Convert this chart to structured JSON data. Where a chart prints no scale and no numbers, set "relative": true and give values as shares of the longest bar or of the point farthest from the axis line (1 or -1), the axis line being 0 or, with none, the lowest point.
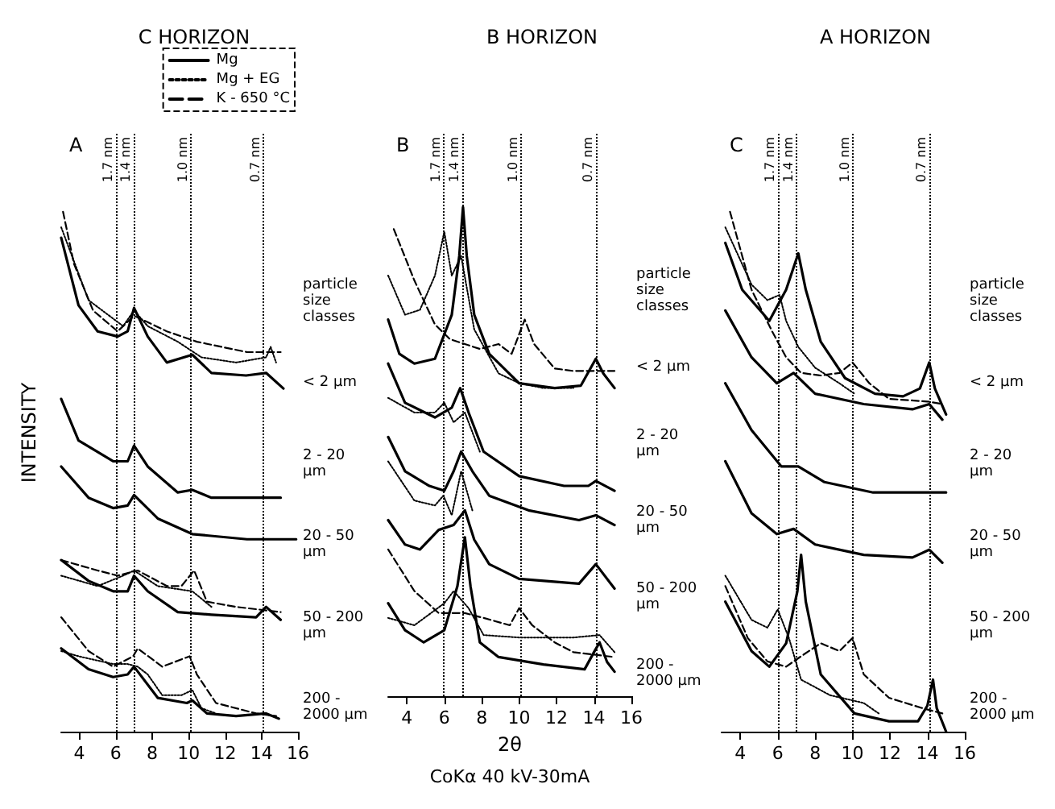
{
  "chart_data": [
    {
      "type": "line",
      "title": "C HORIZON",
      "ylabel": "INTENSITY",
      "relative": true,
      "xlim": [
        3,
        16
      ],
      "xticks": [
        4,
        6,
        8,
        10,
        12,
        14,
        16
      ],
      "legend": "top right",
      "grid": false,
      "ref_lines": [
        {
          "axis": "x",
          "value": 6,
          "label": "1.7 nm",
          "line_style": "dotted"
        },
        {
          "axis": "x",
          "value": 7,
          "label": "1.4 nm",
          "line_style": "dotted"
        },
        {
          "axis": "x",
          "value": 10.1,
          "label": "1.0 nm",
          "line_style": "dotted"
        },
        {
          "axis": "x",
          "value": 14.1,
          "label": "0.7 nm",
          "line_style": "dotted"
        }
      ],
      "annotations": [
        "A",
        "particle size classes",
        "< 2 µm",
        "2 - 20 µm",
        "20 - 50 µm",
        "50 - 200 µm",
        "200 - 2000 µm"
      ],
      "series": [
        {
          "name": "Mg",
          "color": "#000000",
          "line_style": "solid",
          "x": [
            3.0,
            3.95,
            5.0,
            6.1,
            6.65,
            7.0,
            7.75,
            8.8,
            10.2,
            11.25,
            13.15,
            14.25,
            15.2
          ],
          "values": [
            0.95,
            0.82,
            0.77,
            0.76,
            0.77,
            0.815,
            0.76,
            0.71,
            0.725,
            0.69,
            0.685,
            0.69,
            0.66
          ]
        },
        {
          "name": "Mg + EG",
          "color": "#000000",
          "line_style": "dotted",
          "x": [
            3.0,
            4.5,
            6.4,
            7.0,
            7.75,
            9.4,
            10.7,
            12.6,
            14.25,
            14.5,
            14.8
          ],
          "values": [
            0.97,
            0.83,
            0.78,
            0.81,
            0.78,
            0.75,
            0.72,
            0.71,
            0.72,
            0.74,
            0.71
          ]
        },
        {
          "name": "K - 650 °C",
          "color": "#000000",
          "line_style": "dashed",
          "x": [
            3.1,
            3.7,
            4.75,
            6.1,
            7.0,
            8.8,
            10.45,
            13.2,
            15.05
          ],
          "values": [
            1.0,
            0.9,
            0.81,
            0.77,
            0.8,
            0.77,
            0.75,
            0.73,
            0.73
          ]
        },
        {
          "color": "#000000",
          "line_style": "solid",
          "x": [
            3.0,
            3.95,
            5.85,
            6.65,
            7.0,
            7.75,
            9.4,
            10.2,
            11.25,
            15.05
          ],
          "values": [
            0.64,
            0.56,
            0.52,
            0.52,
            0.55,
            0.51,
            0.46,
            0.465,
            0.45,
            0.45
          ]
        },
        {
          "color": "#000000",
          "line_style": "solid",
          "x": [
            3.0,
            4.5,
            5.85,
            6.65,
            7.0,
            8.3,
            10.2,
            13.2,
            15.9
          ],
          "values": [
            0.51,
            0.45,
            0.43,
            0.435,
            0.455,
            0.41,
            0.38,
            0.37,
            0.37
          ]
        },
        {
          "color": "#000000",
          "line_style": "solid",
          "x": [
            3.0,
            4.5,
            5.85,
            6.65,
            7.0,
            7.75,
            9.4,
            11.25,
            13.7,
            14.25,
            15.05
          ],
          "values": [
            0.33,
            0.29,
            0.27,
            0.27,
            0.3,
            0.27,
            0.23,
            0.225,
            0.22,
            0.24,
            0.215
          ]
        },
        {
          "color": "#000000",
          "line_style": "dotted",
          "x": [
            3.0,
            5.0,
            6.4,
            7.0,
            8.3,
            10.2,
            11.25
          ],
          "values": [
            0.3,
            0.28,
            0.3,
            0.31,
            0.28,
            0.27,
            0.24
          ]
        },
        {
          "color": "#000000",
          "line_style": "dashed",
          "x": [
            3.0,
            5.0,
            6.1,
            7.2,
            8.8,
            9.6,
            10.3,
            11.0,
            12.6,
            15.05
          ],
          "values": [
            0.33,
            0.31,
            0.3,
            0.31,
            0.28,
            0.28,
            0.31,
            0.25,
            0.24,
            0.23
          ]
        },
        {
          "color": "#000000",
          "line_style": "solid",
          "x": [
            3.0,
            4.5,
            5.85,
            6.65,
            7.0,
            8.3,
            9.9,
            10.2,
            11.0,
            12.6,
            14.25,
            14.95
          ],
          "values": [
            0.16,
            0.12,
            0.105,
            0.11,
            0.125,
            0.065,
            0.055,
            0.06,
            0.035,
            0.03,
            0.035,
            0.025
          ]
        },
        {
          "color": "#000000",
          "line_style": "dotted",
          "x": [
            3.0,
            3.95,
            5.85,
            6.65,
            7.2,
            7.75,
            8.55,
            9.6,
            10.2,
            10.7,
            11.5
          ],
          "values": [
            0.155,
            0.145,
            0.13,
            0.13,
            0.125,
            0.11,
            0.07,
            0.07,
            0.08,
            0.045,
            0.035
          ]
        },
        {
          "color": "#000000",
          "line_style": "dashed",
          "x": [
            3.0,
            4.5,
            5.85,
            6.95,
            7.2,
            8.55,
            10.05,
            10.45,
            11.5,
            13.7,
            14.8
          ],
          "values": [
            0.22,
            0.155,
            0.125,
            0.145,
            0.16,
            0.125,
            0.145,
            0.11,
            0.055,
            0.035,
            0.03
          ]
        }
      ]
    },
    {
      "type": "line",
      "title": "B HORIZON",
      "subtitle": "CoKα 40 kV-30mA",
      "xlabel": "2θ",
      "relative": true,
      "xlim": [
        3,
        16
      ],
      "xticks": [
        4,
        6,
        8,
        10,
        12,
        14,
        16
      ],
      "grid": false,
      "ref_lines": [
        {
          "axis": "x",
          "value": 5.95,
          "label": "1.7 nm",
          "line_style": "dotted"
        },
        {
          "axis": "x",
          "value": 6.95,
          "label": "1.4 nm",
          "line_style": "dotted"
        },
        {
          "axis": "x",
          "value": 10.1,
          "label": "1.0 nm",
          "line_style": "dotted"
        },
        {
          "axis": "x",
          "value": 14.1,
          "label": "0.7 nm",
          "line_style": "dotted"
        }
      ],
      "annotations": [
        "B",
        "particle size classes",
        "< 2 µm",
        "2 - 20 µm",
        "20 - 50 µm",
        "50 - 200 µm",
        "200 - 2000 µm"
      ],
      "series": [
        {
          "color": "#000000",
          "line_style": "solid",
          "x": [
            3.0,
            3.6,
            4.4,
            5.5,
            6.4,
            6.8,
            7.0,
            7.2,
            7.6,
            8.4,
            10.0,
            11.9,
            13.3,
            14.1,
            14.5,
            15.1
          ],
          "values": [
            0.77,
            0.7,
            0.68,
            0.69,
            0.78,
            0.9,
            1.0,
            0.9,
            0.78,
            0.7,
            0.64,
            0.63,
            0.635,
            0.69,
            0.66,
            0.63
          ]
        },
        {
          "color": "#000000",
          "line_style": "dotted",
          "x": [
            3.0,
            3.9,
            4.7,
            5.5,
            6.0,
            6.4,
            6.9,
            7.6,
            8.9,
            10.0,
            11.3,
            12.9
          ],
          "values": [
            0.86,
            0.78,
            0.79,
            0.86,
            0.95,
            0.86,
            0.9,
            0.75,
            0.66,
            0.64,
            0.63,
            0.63
          ]
        },
        {
          "color": "#000000",
          "line_style": "dashed",
          "x": [
            3.3,
            4.4,
            5.5,
            6.3,
            7.1,
            7.9,
            8.9,
            9.6,
            10.3,
            10.8,
            11.9,
            12.9,
            15.1
          ],
          "values": [
            0.955,
            0.85,
            0.76,
            0.73,
            0.72,
            0.71,
            0.72,
            0.7,
            0.77,
            0.72,
            0.67,
            0.665,
            0.665
          ]
        },
        {
          "color": "#000000",
          "line_style": "solid",
          "x": [
            3.0,
            3.9,
            5.5,
            6.4,
            6.85,
            7.3,
            8.1,
            10.0,
            12.4,
            13.7,
            14.1,
            15.1
          ],
          "values": [
            0.68,
            0.6,
            0.57,
            0.59,
            0.63,
            0.58,
            0.5,
            0.45,
            0.43,
            0.43,
            0.44,
            0.42
          ]
        },
        {
          "color": "#000000",
          "line_style": "dotted",
          "x": [
            3.0,
            4.4,
            5.5,
            6.0,
            6.5,
            7.1,
            7.9
          ],
          "values": [
            0.61,
            0.58,
            0.58,
            0.6,
            0.56,
            0.58,
            0.5
          ]
        },
        {
          "color": "#000000",
          "line_style": "solid",
          "x": [
            3.0,
            3.9,
            5.2,
            6.0,
            6.5,
            6.9,
            7.5,
            8.4,
            10.5,
            13.2,
            14.1,
            15.1
          ],
          "values": [
            0.53,
            0.46,
            0.43,
            0.42,
            0.46,
            0.5,
            0.46,
            0.41,
            0.38,
            0.36,
            0.37,
            0.35
          ]
        },
        {
          "color": "#000000",
          "line_style": "dotted",
          "x": [
            3.0,
            4.4,
            5.5,
            5.95,
            6.4,
            6.9,
            7.5
          ],
          "values": [
            0.48,
            0.4,
            0.39,
            0.41,
            0.37,
            0.46,
            0.38
          ]
        },
        {
          "color": "#000000",
          "line_style": "solid",
          "x": [
            3.0,
            3.9,
            4.7,
            5.7,
            6.5,
            7.1,
            7.6,
            8.4,
            10.0,
            13.2,
            14.1,
            15.1
          ],
          "values": [
            0.36,
            0.31,
            0.3,
            0.34,
            0.35,
            0.38,
            0.32,
            0.27,
            0.24,
            0.23,
            0.27,
            0.22
          ]
        },
        {
          "color": "#000000",
          "line_style": "solid",
          "x": [
            3.0,
            3.9,
            4.9,
            6.0,
            6.7,
            7.1,
            7.4,
            7.9,
            8.9,
            11.3,
            13.5,
            14.0,
            14.3,
            14.7,
            15.1
          ],
          "values": [
            0.19,
            0.135,
            0.11,
            0.135,
            0.225,
            0.325,
            0.225,
            0.11,
            0.08,
            0.065,
            0.055,
            0.09,
            0.11,
            0.07,
            0.05
          ]
        },
        {
          "color": "#000000",
          "line_style": "dotted",
          "x": [
            3.0,
            4.4,
            6.0,
            6.5,
            7.3,
            8.1,
            10.0,
            12.9,
            14.3,
            15.1
          ],
          "values": [
            0.16,
            0.145,
            0.19,
            0.215,
            0.18,
            0.125,
            0.12,
            0.12,
            0.125,
            0.09
          ]
        },
        {
          "color": "#000000",
          "line_style": "dashed",
          "x": [
            3.0,
            4.4,
            5.7,
            7.1,
            8.1,
            9.5,
            10.0,
            10.7,
            11.9,
            12.9,
            15.1
          ],
          "values": [
            0.3,
            0.215,
            0.17,
            0.17,
            0.16,
            0.145,
            0.18,
            0.145,
            0.11,
            0.09,
            0.08
          ]
        }
      ]
    },
    {
      "type": "line",
      "title": "A HORIZON",
      "relative": true,
      "xlim": [
        3,
        16
      ],
      "xticks": [
        4,
        6,
        8,
        10,
        12,
        14,
        16
      ],
      "grid": false,
      "ref_lines": [
        {
          "axis": "x",
          "value": 6,
          "label": "1.7 nm",
          "line_style": "dotted"
        },
        {
          "axis": "x",
          "value": 7,
          "label": "1.4 nm",
          "line_style": "dotted"
        },
        {
          "axis": "x",
          "value": 10,
          "label": "1.0 nm",
          "line_style": "dotted"
        },
        {
          "axis": "x",
          "value": 14.1,
          "label": "0.7 nm",
          "line_style": "dotted"
        }
      ],
      "annotations": [
        "C",
        "particle size classes",
        "< 2 µm",
        "2 - 20 µm",
        "20 - 50 µm",
        "50 - 200 µm",
        "200 - 2000 µm"
      ],
      "series": [
        {
          "color": "#000000",
          "line_style": "solid",
          "x": [
            3.2,
            4.1,
            5.55,
            6.45,
            7.1,
            7.5,
            8.3,
            9.6,
            11.2,
            12.7,
            13.6,
            14.1,
            14.4,
            15.0
          ],
          "values": [
            0.94,
            0.85,
            0.79,
            0.85,
            0.92,
            0.85,
            0.75,
            0.68,
            0.65,
            0.645,
            0.66,
            0.71,
            0.66,
            0.61
          ]
        },
        {
          "color": "#000000",
          "line_style": "dotted",
          "x": [
            3.2,
            4.6,
            5.45,
            6.1,
            6.45,
            7.1,
            8.0,
            9.3,
            10.1
          ],
          "values": [
            0.97,
            0.86,
            0.83,
            0.84,
            0.79,
            0.74,
            0.7,
            0.67,
            0.65
          ]
        },
        {
          "color": "#000000",
          "line_style": "dashed",
          "x": [
            3.45,
            4.6,
            5.7,
            6.45,
            7.25,
            8.3,
            9.3,
            10.0,
            10.9,
            11.95,
            14.0,
            14.8
          ],
          "values": [
            1.0,
            0.85,
            0.77,
            0.72,
            0.69,
            0.685,
            0.69,
            0.71,
            0.67,
            0.64,
            0.635,
            0.63
          ]
        },
        {
          "color": "#000000",
          "line_style": "solid",
          "x": [
            3.2,
            4.6,
            5.95,
            6.85,
            8.0,
            10.6,
            13.2,
            14.1,
            14.8
          ],
          "values": [
            0.81,
            0.72,
            0.67,
            0.69,
            0.65,
            0.63,
            0.62,
            0.63,
            0.6
          ]
        },
        {
          "color": "#000000",
          "line_style": "solid",
          "x": [
            3.2,
            4.6,
            6.2,
            7.1,
            8.5,
            11.1,
            15.0
          ],
          "values": [
            0.67,
            0.58,
            0.51,
            0.51,
            0.48,
            0.46,
            0.46
          ]
        },
        {
          "color": "#000000",
          "line_style": "solid",
          "x": [
            3.2,
            4.6,
            5.95,
            6.85,
            8.0,
            10.6,
            13.2,
            14.1,
            14.8
          ],
          "values": [
            0.52,
            0.42,
            0.38,
            0.39,
            0.36,
            0.34,
            0.335,
            0.35,
            0.325
          ]
        },
        {
          "color": "#000000",
          "line_style": "solid",
          "x": [
            3.2,
            4.6,
            5.55,
            6.45,
            7.05,
            7.25,
            7.5,
            8.3,
            10.1,
            11.95,
            13.5,
            14.0,
            14.3,
            14.5,
            15.0
          ],
          "values": [
            0.25,
            0.155,
            0.125,
            0.17,
            0.27,
            0.34,
            0.25,
            0.11,
            0.035,
            0.02,
            0.02,
            0.05,
            0.1,
            0.045,
            0.0
          ]
        },
        {
          "color": "#000000",
          "line_style": "dotted",
          "x": [
            3.2,
            4.6,
            5.45,
            6.0,
            6.6,
            7.25,
            8.8,
            10.6,
            11.4
          ],
          "values": [
            0.3,
            0.215,
            0.2,
            0.235,
            0.18,
            0.1,
            0.07,
            0.055,
            0.035
          ]
        },
        {
          "color": "#000000",
          "line_style": "dashed",
          "x": [
            3.2,
            4.4,
            5.45,
            6.45,
            7.25,
            8.3,
            9.3,
            10.0,
            10.6,
            11.95,
            13.75,
            14.8
          ],
          "values": [
            0.28,
            0.18,
            0.135,
            0.125,
            0.145,
            0.17,
            0.155,
            0.18,
            0.11,
            0.065,
            0.045,
            0.035
          ]
        }
      ]
    }
  ]
}
